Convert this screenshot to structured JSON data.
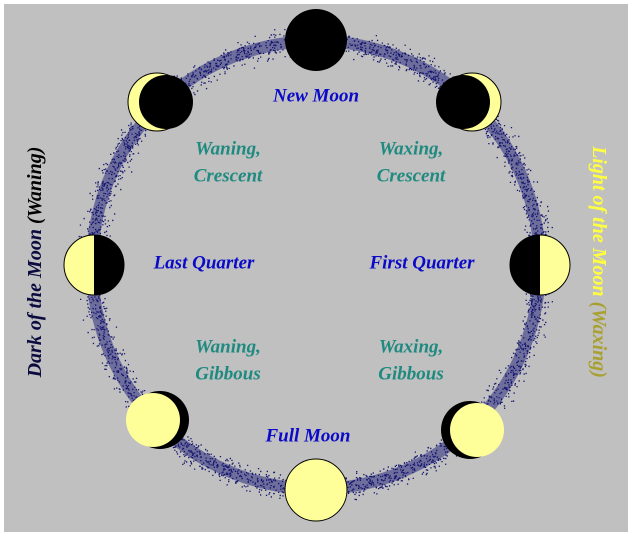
{
  "phases": [
    {
      "label": "New Moon"
    },
    {
      "label": "First Quarter"
    },
    {
      "label": "Full Moon"
    },
    {
      "label": "Last Quarter"
    }
  ],
  "regions": [
    {
      "lines": [
        "Waning,",
        "Crescent"
      ]
    },
    {
      "lines": [
        "Waxing,",
        "Crescent"
      ]
    },
    {
      "lines": [
        "Waning,",
        "Gibbous"
      ]
    },
    {
      "lines": [
        "Waxing,",
        "Gibbous"
      ]
    }
  ],
  "sides": {
    "left": {
      "text": "Dark of the Moon",
      "paren": "(Waning)"
    },
    "right": {
      "text": "Light of the Moon",
      "paren": "(Waxing)"
    }
  }
}
